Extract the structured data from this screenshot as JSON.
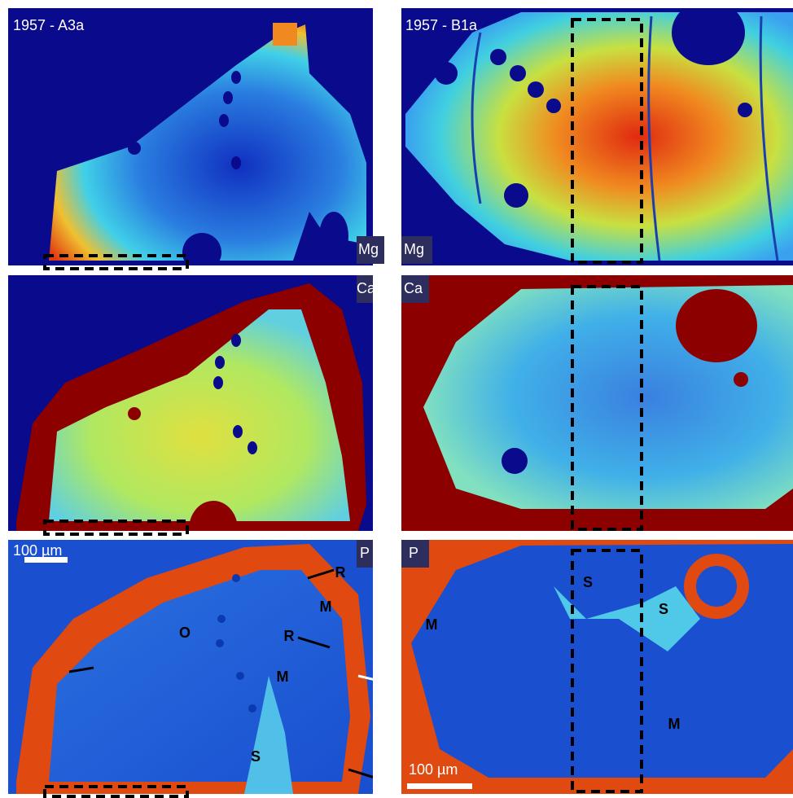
{
  "panels": [
    {
      "sample": "1957 - A3a",
      "element": "Mg"
    },
    {
      "sample": "1957 - B1a",
      "element": "Mg"
    },
    {
      "element": "Ca"
    },
    {
      "element": "Ca"
    },
    {
      "element": "P",
      "scale_bar": "100 µm",
      "labels": [
        "R",
        "M",
        "R",
        "O",
        "M",
        "S"
      ]
    },
    {
      "element": "P",
      "scale_bar": "100 µm",
      "labels": [
        "S",
        "M",
        "S",
        "M"
      ]
    }
  ]
}
